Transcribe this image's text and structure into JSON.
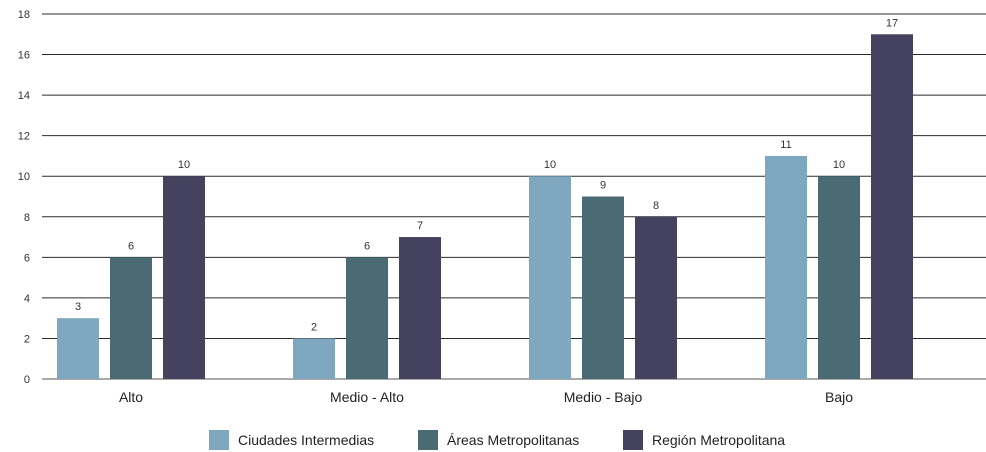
{
  "chart_data": {
    "type": "bar",
    "categories": [
      "Alto",
      "Medio - Alto",
      "Medio - Bajo",
      "Bajo"
    ],
    "series": [
      {
        "name": "Ciudades Intermedias",
        "values": [
          3,
          2,
          10,
          11
        ],
        "color": "#7fa7bf"
      },
      {
        "name": "Áreas Metropolitanas",
        "values": [
          6,
          6,
          9,
          10
        ],
        "color": "#4a6a74"
      },
      {
        "name": "Región Metropolitana",
        "values": [
          10,
          7,
          8,
          17
        ],
        "color": "#454260"
      }
    ],
    "ylim": [
      0,
      18
    ],
    "yticks": [
      0,
      2,
      4,
      6,
      8,
      10,
      12,
      14,
      16,
      18
    ],
    "grid": true,
    "legend": "bottom-center",
    "title": "",
    "xlabel": "",
    "ylabel": ""
  }
}
